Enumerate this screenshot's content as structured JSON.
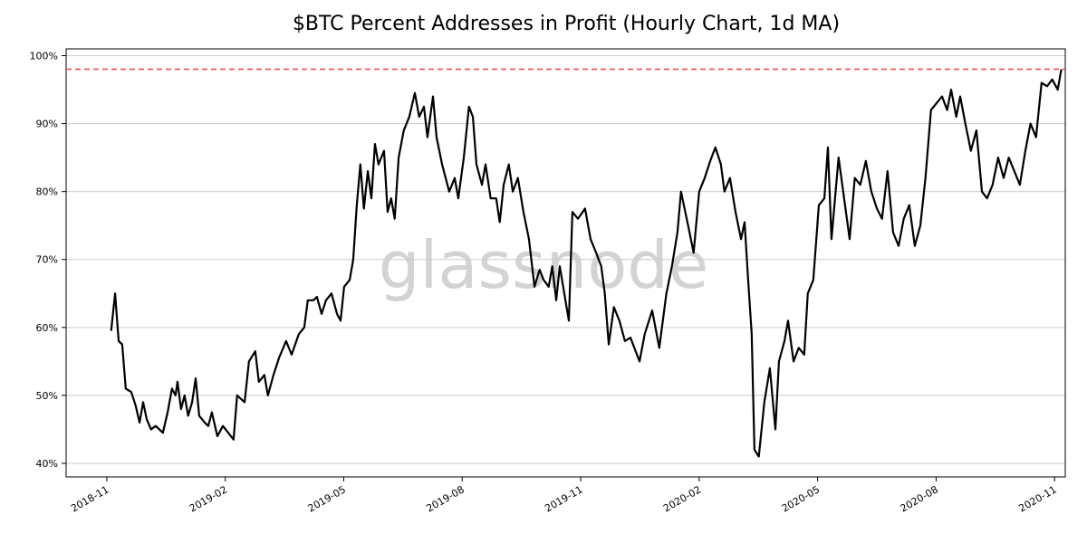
{
  "chart_data": {
    "type": "line",
    "title": "$BTC Percent Addresses in Profit (Hourly Chart, 1d MA)",
    "watermark": "glassnode",
    "color": "#000000",
    "grid": true,
    "hline": 98,
    "hline_color": "#e8474a",
    "xlim": [
      -1.03,
      24.27
    ],
    "xticks": [
      {
        "value": 0,
        "label": "2018-11"
      },
      {
        "value": 3,
        "label": "2019-02"
      },
      {
        "value": 6,
        "label": "2019-05"
      },
      {
        "value": 9,
        "label": "2019-08"
      },
      {
        "value": 12,
        "label": "2019-11"
      },
      {
        "value": 15,
        "label": "2020-02"
      },
      {
        "value": 18,
        "label": "2020-05"
      },
      {
        "value": 21,
        "label": "2020-08"
      },
      {
        "value": 24,
        "label": "2020-11"
      }
    ],
    "ylim": [
      38,
      101
    ],
    "yticks": [
      {
        "value": 40,
        "label": "40%"
      },
      {
        "value": 50,
        "label": "50%"
      },
      {
        "value": 60,
        "label": "60%"
      },
      {
        "value": 70,
        "label": "70%"
      },
      {
        "value": 80,
        "label": "80%"
      },
      {
        "value": 90,
        "label": "90%"
      },
      {
        "value": 100,
        "label": "100%"
      }
    ],
    "x": [
      0.11,
      0.21,
      0.3,
      0.39,
      0.48,
      0.62,
      0.73,
      0.83,
      0.92,
      1.01,
      1.12,
      1.24,
      1.42,
      1.54,
      1.65,
      1.74,
      1.79,
      1.88,
      1.97,
      2.06,
      2.16,
      2.25,
      2.34,
      2.48,
      2.57,
      2.66,
      2.8,
      2.94,
      3.21,
      3.3,
      3.49,
      3.6,
      3.76,
      3.85,
      3.99,
      4.08,
      4.22,
      4.36,
      4.54,
      4.68,
      4.86,
      5.0,
      5.09,
      5.23,
      5.32,
      5.44,
      5.55,
      5.69,
      5.83,
      5.92,
      6.01,
      6.15,
      6.24,
      6.33,
      6.42,
      6.51,
      6.61,
      6.7,
      6.79,
      6.88,
      7.02,
      7.11,
      7.2,
      7.29,
      7.39,
      7.52,
      7.66,
      7.8,
      7.91,
      8.03,
      8.12,
      8.26,
      8.35,
      8.49,
      8.58,
      8.67,
      8.81,
      8.9,
      9.04,
      9.17,
      9.27,
      9.36,
      9.5,
      9.59,
      9.72,
      9.86,
      9.95,
      10.05,
      10.18,
      10.28,
      10.41,
      10.55,
      10.69,
      10.83,
      10.96,
      11.06,
      11.19,
      11.28,
      11.38,
      11.47,
      11.7,
      11.79,
      11.93,
      12.11,
      12.25,
      12.39,
      12.52,
      12.61,
      12.71,
      12.84,
      12.98,
      13.12,
      13.26,
      13.49,
      13.62,
      13.81,
      13.99,
      14.17,
      14.31,
      14.45,
      14.54,
      14.72,
      14.86,
      15.0,
      15.14,
      15.28,
      15.41,
      15.55,
      15.64,
      15.78,
      15.92,
      16.06,
      16.15,
      16.24,
      16.33,
      16.4,
      16.51,
      16.65,
      16.79,
      16.93,
      17.02,
      17.16,
      17.25,
      17.39,
      17.52,
      17.66,
      17.75,
      17.89,
      18.03,
      18.17,
      18.26,
      18.35,
      18.53,
      18.67,
      18.81,
      18.94,
      19.08,
      19.22,
      19.36,
      19.5,
      19.63,
      19.77,
      19.91,
      20.05,
      20.18,
      20.32,
      20.46,
      20.6,
      20.73,
      20.87,
      21.01,
      21.15,
      21.28,
      21.38,
      21.51,
      21.61,
      21.74,
      21.88,
      22.02,
      22.16,
      22.29,
      22.43,
      22.57,
      22.71,
      22.84,
      22.98,
      23.12,
      23.26,
      23.39,
      23.53,
      23.67,
      23.81,
      23.94,
      24.08,
      24.17
    ],
    "values": [
      59.5,
      65,
      58,
      57.5,
      51,
      50.5,
      48.5,
      46,
      49,
      46.5,
      45,
      45.5,
      44.5,
      47.5,
      51,
      50,
      52,
      48,
      50,
      47,
      49,
      52.5,
      47,
      46,
      45.5,
      47.5,
      44,
      45.5,
      43.5,
      50,
      49,
      55,
      56.5,
      52,
      53,
      50,
      53,
      55.5,
      58,
      56,
      59,
      60,
      64,
      64,
      64.5,
      62,
      64,
      65,
      62,
      61,
      66,
      67,
      70,
      78,
      84,
      77.5,
      83,
      79,
      87,
      84,
      86,
      77,
      79,
      76,
      85,
      89,
      91,
      94.5,
      91,
      92.5,
      88,
      94,
      88,
      84,
      82,
      80,
      82,
      79,
      85,
      92.5,
      91,
      84,
      81,
      84,
      79,
      79,
      75.5,
      81,
      84,
      80,
      82,
      77,
      73,
      66,
      68.5,
      67,
      66,
      69,
      64,
      69,
      61,
      77,
      76,
      77.5,
      73,
      71,
      69,
      65,
      57.5,
      63,
      61,
      58,
      58.5,
      55,
      59,
      62.5,
      57,
      65,
      69,
      74,
      80,
      75,
      71,
      80,
      82,
      84.5,
      86.5,
      84,
      80,
      82,
      77,
      73,
      75.5,
      67,
      59,
      42,
      41,
      49,
      54,
      45,
      55,
      58,
      61,
      55,
      57,
      56,
      65,
      67,
      78,
      79,
      86.5,
      73,
      85,
      79,
      73,
      82,
      81,
      84.5,
      80,
      77.5,
      76,
      83,
      74,
      72,
      76,
      78,
      72,
      75,
      82,
      92,
      93,
      94,
      92,
      95,
      91,
      94,
      90,
      86,
      89,
      80,
      79,
      81,
      85,
      82,
      85,
      83,
      81,
      86,
      90,
      88,
      96,
      95.5,
      96.5,
      95,
      98
    ]
  }
}
